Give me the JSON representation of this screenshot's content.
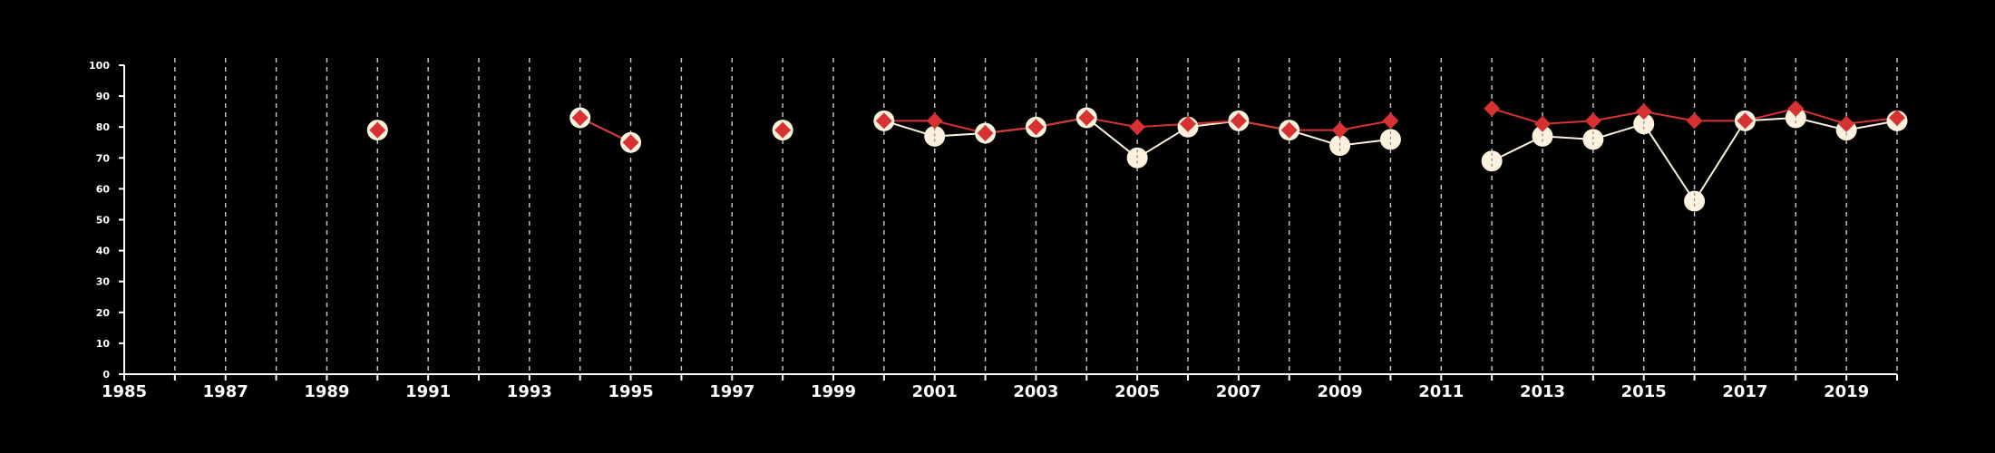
{
  "colors": {
    "background": "#000000",
    "axis": "#ffffff",
    "grid": "#cccccc",
    "series_white": "#fbf1dd",
    "series_red": "#d73231"
  },
  "chart_data": {
    "type": "line",
    "title": "",
    "xlabel": "",
    "ylabel": "",
    "xlim": [
      1985,
      2020
    ],
    "ylim": [
      0,
      100
    ],
    "x_ticks": [
      1985,
      1987,
      1989,
      1991,
      1993,
      1995,
      1997,
      1999,
      2001,
      2003,
      2005,
      2007,
      2009,
      2011,
      2013,
      2015,
      2017,
      2019
    ],
    "y_ticks": [
      0,
      10,
      20,
      30,
      40,
      50,
      60,
      70,
      80,
      90,
      100
    ],
    "grid": "vertical dashed lines every year",
    "legend": "none",
    "series": [
      {
        "marker": "circle",
        "color": "#fbf1dd",
        "points": [
          [
            1990,
            79
          ],
          [
            1994,
            83
          ],
          [
            1995,
            75
          ],
          [
            1998,
            79
          ],
          [
            2000,
            82
          ],
          [
            2001,
            77
          ],
          [
            2002,
            78
          ],
          [
            2003,
            80
          ],
          [
            2004,
            83
          ],
          [
            2005,
            70
          ],
          [
            2006,
            80
          ],
          [
            2007,
            82
          ],
          [
            2008,
            79
          ],
          [
            2009,
            74
          ],
          [
            2010,
            76
          ],
          [
            2012,
            69
          ],
          [
            2013,
            77
          ],
          [
            2014,
            76
          ],
          [
            2015,
            81
          ],
          [
            2016,
            56
          ],
          [
            2017,
            82
          ],
          [
            2018,
            83
          ],
          [
            2019,
            79
          ],
          [
            2020,
            82
          ]
        ]
      },
      {
        "marker": "diamond",
        "color": "#d73231",
        "points": [
          [
            1990,
            79
          ],
          [
            1994,
            83
          ],
          [
            1995,
            75
          ],
          [
            1998,
            79
          ],
          [
            2000,
            82
          ],
          [
            2001,
            82
          ],
          [
            2002,
            78
          ],
          [
            2003,
            80
          ],
          [
            2004,
            83
          ],
          [
            2005,
            80
          ],
          [
            2006,
            81
          ],
          [
            2007,
            82
          ],
          [
            2008,
            79
          ],
          [
            2009,
            79
          ],
          [
            2010,
            82
          ],
          [
            2012,
            86
          ],
          [
            2013,
            81
          ],
          [
            2014,
            82
          ],
          [
            2015,
            85
          ],
          [
            2016,
            82
          ],
          [
            2017,
            82
          ],
          [
            2018,
            86
          ],
          [
            2019,
            81
          ],
          [
            2020,
            83
          ]
        ]
      }
    ]
  }
}
